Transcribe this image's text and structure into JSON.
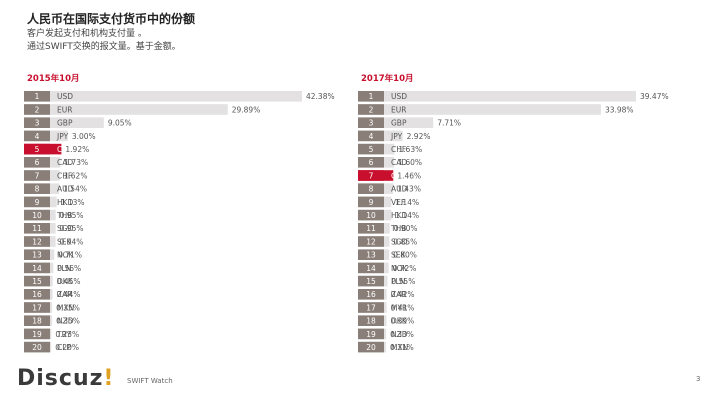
{
  "header": {
    "title": "人民币在国际支付货币中的份额",
    "subtitle1": "客户发起支付和机构支付量 。",
    "subtitle2": "通过SWIFT交换的报文量。基于金额。"
  },
  "footer": {
    "logo_main": "Discuz",
    "logo_bang": "!",
    "source": "SWIFT Watch",
    "page": "3"
  },
  "colors": {
    "bar": "#e3e1e1",
    "highlight": "#c8102e",
    "rank_box": "#8a7f78"
  },
  "chart_data": [
    {
      "type": "bar",
      "title": "2015年10月",
      "ranks": [
        "1",
        "2",
        "3",
        "4",
        "5",
        "6",
        "7",
        "8",
        "9",
        "10",
        "11",
        "12",
        "13",
        "14",
        "15",
        "16",
        "17",
        "18",
        "19",
        "20"
      ],
      "categories": [
        "USD",
        "EUR",
        "GBP",
        "JPY",
        "CNY",
        "CAD",
        "CHF",
        "AUD",
        "HKD",
        "THB",
        "SGD",
        "SEK",
        "NOK",
        "PLN",
        "DKK",
        "ZAR",
        "MXN",
        "NZD",
        "TRY",
        "CLP"
      ],
      "values": [
        42.38,
        29.89,
        9.05,
        3.0,
        1.92,
        1.73,
        1.62,
        1.54,
        1.13,
        0.95,
        0.95,
        0.94,
        0.71,
        0.56,
        0.45,
        0.44,
        0.35,
        0.35,
        0.23,
        0.2
      ],
      "labels": [
        "42.38%",
        "29.89%",
        "9.05%",
        "3.00%",
        "1.92%",
        "1.73%",
        "1.62%",
        "1.54%",
        "1.13%",
        "0.95%",
        "0.95%",
        "0.94%",
        "0.71%",
        "0.56%",
        "0.45%",
        "0.44%",
        "0.35%",
        "0.35%",
        "0.23%",
        "0.20%"
      ],
      "highlight": "CNY"
    },
    {
      "type": "bar",
      "title": "2017年10月",
      "ranks": [
        "1",
        "2",
        "3",
        "4",
        "5",
        "6",
        "7",
        "8",
        "9",
        "10",
        "11",
        "12",
        "13",
        "14",
        "15",
        "16",
        "17",
        "18",
        "19",
        "20"
      ],
      "categories": [
        "USD",
        "EUR",
        "GBP",
        "JPY",
        "CHF",
        "CAD",
        "CNY",
        "AUD",
        "VEF",
        "HKD",
        "THB",
        "SGD",
        "SEK",
        "NOK",
        "PLN",
        "ZAR",
        "MYR",
        "DKK",
        "NZD",
        "MXN"
      ],
      "values": [
        39.47,
        33.98,
        7.71,
        2.92,
        1.63,
        1.6,
        1.46,
        1.43,
        1.14,
        1.14,
        0.9,
        0.85,
        0.8,
        0.72,
        0.55,
        0.42,
        0.41,
        0.39,
        0.33,
        0.31
      ],
      "labels": [
        "39.47%",
        "33.98%",
        "7.71%",
        "2.92%",
        "1.63%",
        "1.60%",
        "1.46%",
        "1.43%",
        "1.14%",
        "1.14%",
        "0.90%",
        "0.85%",
        "0.80%",
        "0.72%",
        "0.55%",
        "0.42%",
        "0.41%",
        "0.39%",
        "0.33%",
        "0.31%"
      ],
      "highlight": "CNY"
    }
  ]
}
